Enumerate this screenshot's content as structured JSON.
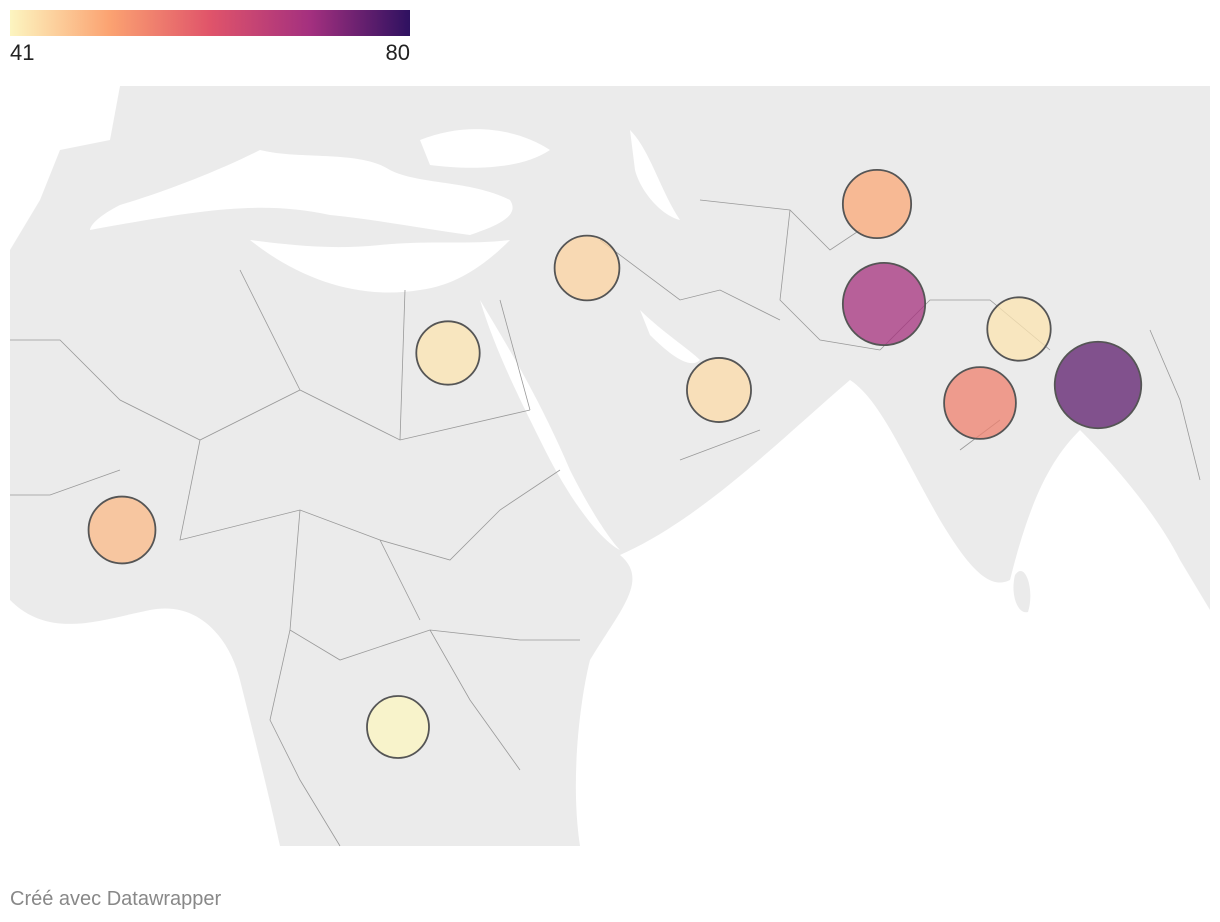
{
  "legend": {
    "min": 41,
    "max": 80
  },
  "bubbles": [
    {
      "value": 50
    },
    {
      "value": 70
    },
    {
      "value": 43
    },
    {
      "value": 76
    },
    {
      "value": 55
    },
    {
      "value": 45
    },
    {
      "value": 43
    },
    {
      "value": 44
    },
    {
      "value": 48
    },
    {
      "value": 41
    }
  ],
  "credit": "Créé avec Datawrapper"
}
